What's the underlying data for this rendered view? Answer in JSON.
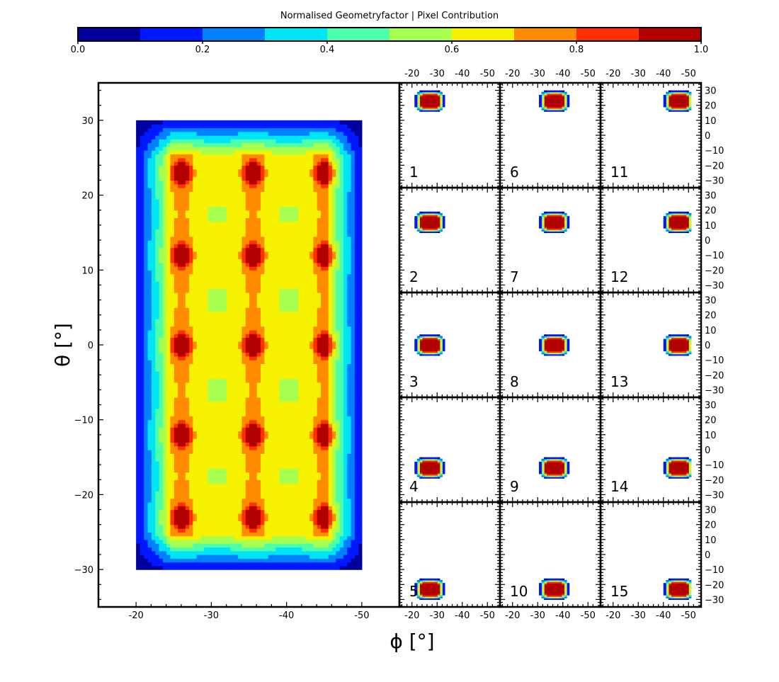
{
  "chart_data": {
    "type": "heatmap",
    "colorbar": {
      "title": "Normalised Geometryfactor | Pixel Contribution",
      "ticks": [
        "0.0",
        "0.2",
        "0.4",
        "0.6",
        "0.8",
        "1.0"
      ],
      "range": [
        0,
        1
      ],
      "levels": 10,
      "colors": [
        "#00009c",
        "#0019ff",
        "#0080ff",
        "#00e5f6",
        "#4dffa8",
        "#a7ff50",
        "#f6f100",
        "#ff8b00",
        "#ff2f00",
        "#b00000"
      ]
    },
    "main_plot": {
      "xlabel": "ϕ [°]",
      "ylabel": "θ [°]",
      "xlim": [
        -15,
        -55
      ],
      "ylim": [
        -35,
        35
      ],
      "xticks": [
        "-20",
        "-30",
        "-40",
        "-50"
      ],
      "yticks": [
        "30",
        "20",
        "10",
        "0",
        "−10",
        "−20",
        "−30"
      ],
      "ytick_values": [
        30,
        20,
        10,
        0,
        -10,
        -20,
        -30
      ],
      "xtick_values": [
        -20,
        -30,
        -40,
        -50
      ],
      "pixel_phi_centers": [
        -26,
        -35.5,
        -45
      ],
      "pixel_theta_centers": [
        23,
        12,
        0,
        -12,
        -23
      ],
      "field_phi_range": [
        -20,
        -50
      ],
      "field_theta_range": [
        -30,
        30
      ]
    },
    "panels": {
      "xticks": [
        "-20",
        "-30",
        "-40",
        "-50"
      ],
      "yticks": [
        "30",
        "20",
        "10",
        "0",
        "−10",
        "−20",
        "−30"
      ],
      "labels": [
        "1",
        "2",
        "3",
        "4",
        "5",
        "6",
        "7",
        "8",
        "9",
        "10",
        "11",
        "12",
        "13",
        "14",
        "15"
      ],
      "pixels": [
        {
          "id": "1",
          "phi": -26,
          "theta": 23
        },
        {
          "id": "2",
          "phi": -26,
          "theta": 12
        },
        {
          "id": "3",
          "phi": -26,
          "theta": 0
        },
        {
          "id": "4",
          "phi": -26,
          "theta": -12
        },
        {
          "id": "5",
          "phi": -26,
          "theta": -23
        },
        {
          "id": "6",
          "phi": -35.5,
          "theta": 23
        },
        {
          "id": "7",
          "phi": -35.5,
          "theta": 12
        },
        {
          "id": "8",
          "phi": -35.5,
          "theta": 0
        },
        {
          "id": "9",
          "phi": -35.5,
          "theta": -12
        },
        {
          "id": "10",
          "phi": -35.5,
          "theta": -23
        },
        {
          "id": "11",
          "phi": -45,
          "theta": 23
        },
        {
          "id": "12",
          "phi": -45,
          "theta": 12
        },
        {
          "id": "13",
          "phi": -45,
          "theta": 0
        },
        {
          "id": "14",
          "phi": -45,
          "theta": -12
        },
        {
          "id": "15",
          "phi": -45,
          "theta": -23
        }
      ]
    }
  }
}
